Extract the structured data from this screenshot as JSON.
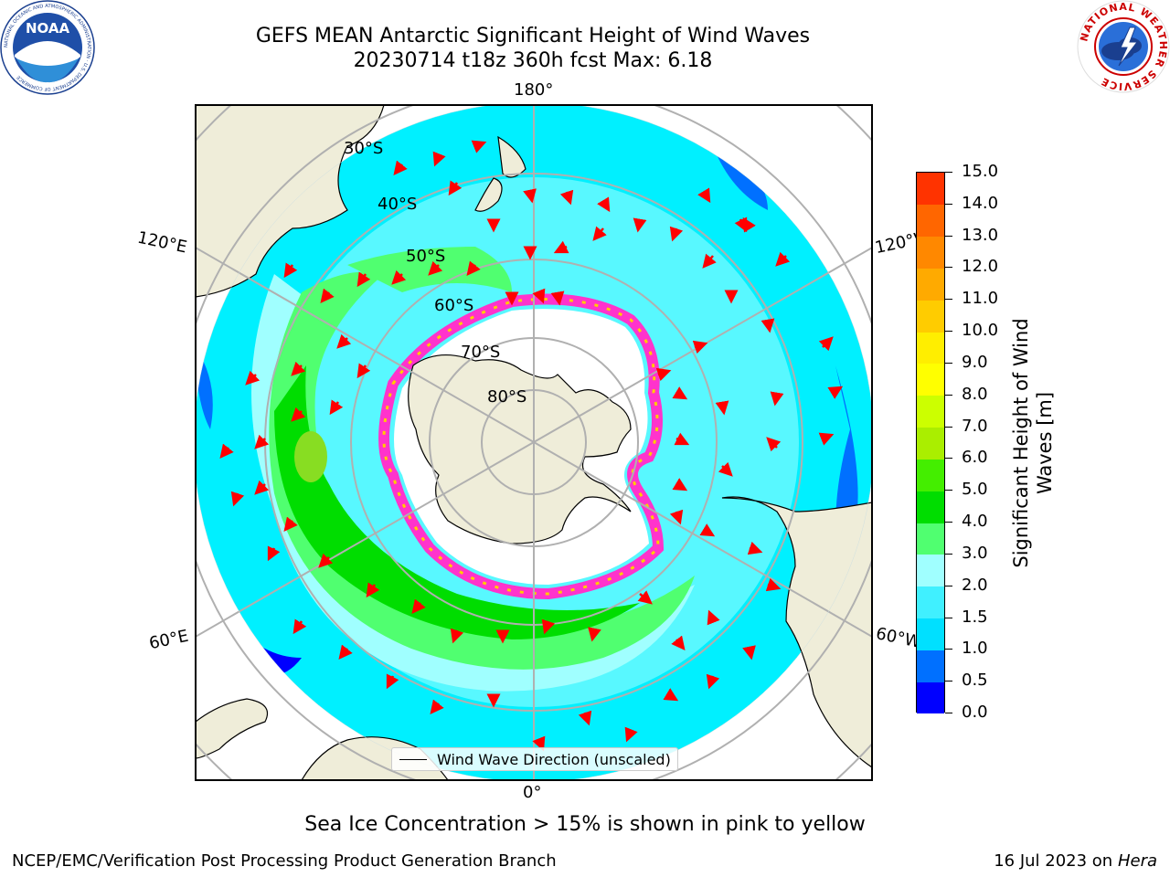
{
  "title": {
    "line1": "GEFS MEAN Antarctic Significant Height of Wind Waves",
    "line2": "20230714 t18z 360h fcst   Max: 6.18"
  },
  "logos": {
    "noaa": {
      "text": "NOAA",
      "ring_text": "NATIONAL OCEANIC AND ATMOSPHERIC ADMINISTRATION · U.S. DEPARTMENT OF COMMERCE",
      "icon": "noaa-logo-icon"
    },
    "nws": {
      "ring_text": "NATIONAL WEATHER SERVICE",
      "icon": "nws-logo-icon"
    }
  },
  "map": {
    "projection": "south-polar-stereographic",
    "longitude_labels": [
      "180°",
      "120°E",
      "120°W",
      "60°E",
      "60°W",
      "0°"
    ],
    "latitude_labels": [
      "30°S",
      "40°S",
      "50°S",
      "60°S",
      "70°S",
      "80°S"
    ],
    "colors": {
      "land": "#efedd9",
      "ice_interior": "#ffffff",
      "ice_edge": [
        "#ff33cc",
        "#ff66ff",
        "#ffcc00"
      ],
      "grid": "#b0b0b0",
      "arrow": "#ff0000"
    }
  },
  "legend": {
    "label": "Wind Wave Direction (unscaled)"
  },
  "colorbar": {
    "title_line1": "Significant Height of Wind",
    "title_line2": "Waves [m]",
    "ticks": [
      "0.0",
      "0.5",
      "1.0",
      "1.5",
      "2.0",
      "3.0",
      "4.0",
      "5.0",
      "6.0",
      "7.0",
      "8.0",
      "9.0",
      "10.0",
      "11.0",
      "12.0",
      "13.0",
      "14.0",
      "15.0"
    ],
    "colors": [
      "#0000ff",
      "#0070ff",
      "#00e0ff",
      "#40f0ff",
      "#a0ffff",
      "#50ff70",
      "#00dd00",
      "#44ee00",
      "#aaee00",
      "#ccff00",
      "#ffff00",
      "#ffee00",
      "#ffcc00",
      "#ffaa00",
      "#ff8800",
      "#ff6600",
      "#ff3300",
      "#ff0000"
    ]
  },
  "caption": "Sea Ice Concentration > 15% is shown in pink to yellow",
  "footer": {
    "left": "NCEP/EMC/Verification Post Processing Product Generation Branch",
    "right_prefix": "16 Jul 2023 on ",
    "right_host": "Hera"
  }
}
